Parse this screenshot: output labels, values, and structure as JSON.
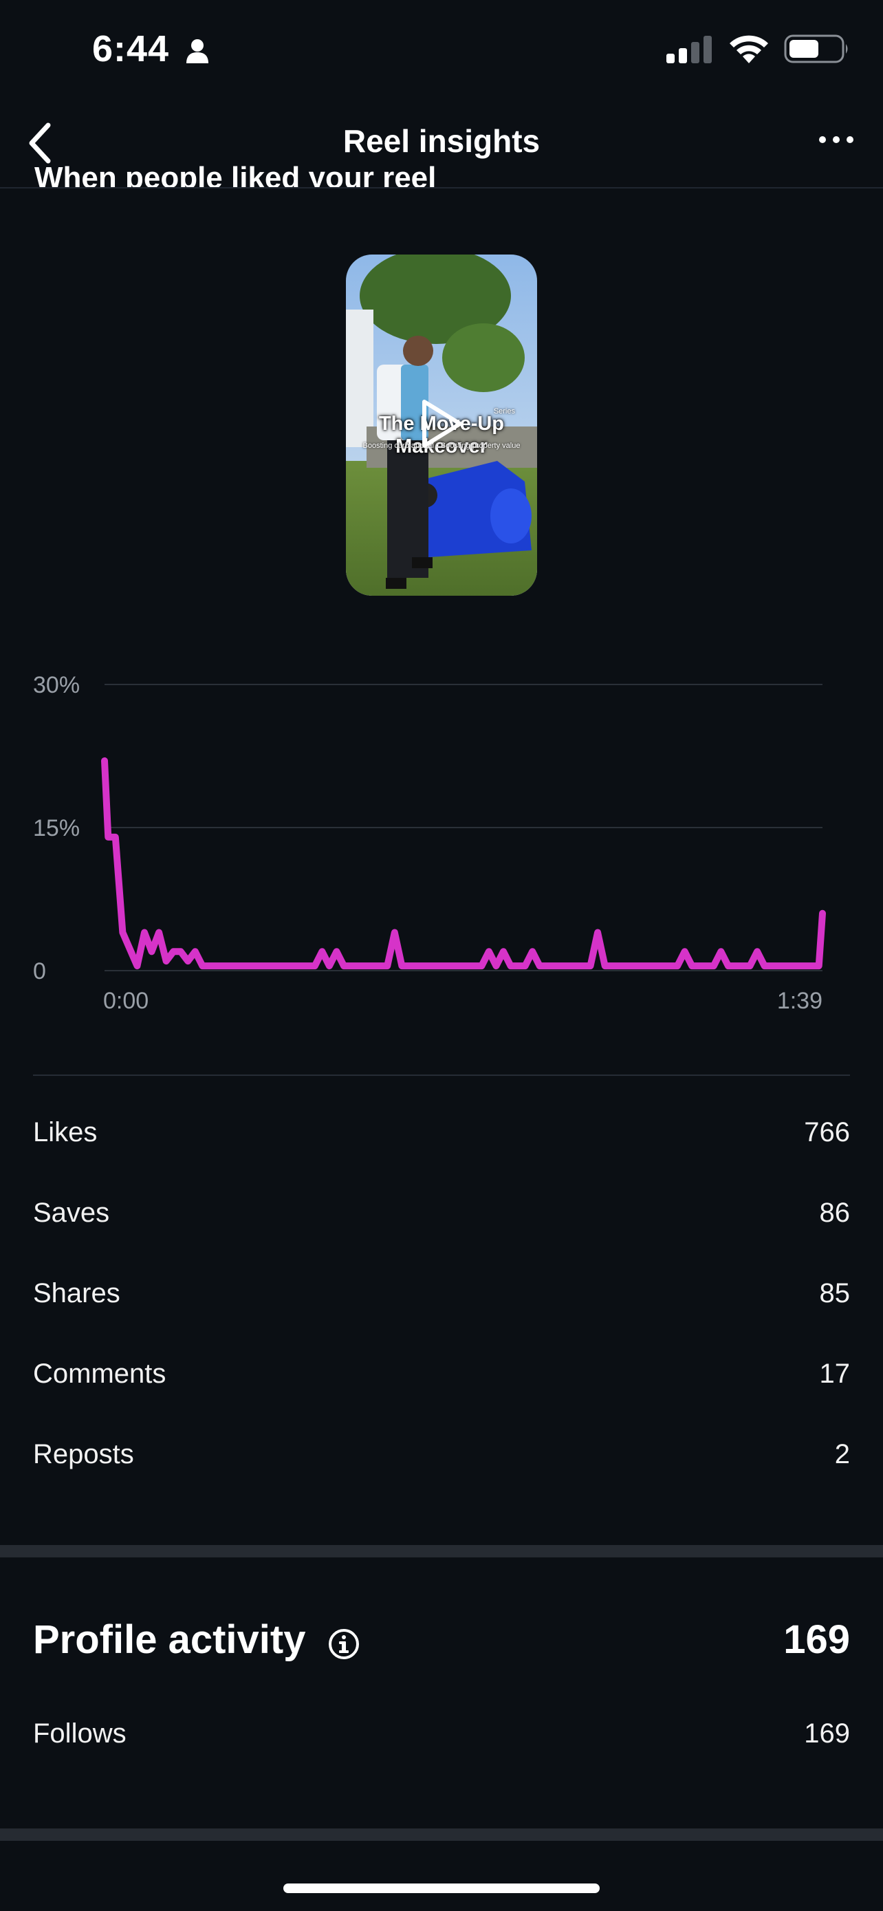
{
  "status_bar": {
    "time": "6:44"
  },
  "nav": {
    "title": "Reel insights"
  },
  "section": {
    "title": "When people liked your reel"
  },
  "thumbnail": {
    "overlay_title": "The Move-Up Makeover",
    "overlay_series": "Series",
    "overlay_subtitle": "Boosting curb appeal • Boosting property value"
  },
  "chart_data": {
    "type": "line",
    "ytick_labels": [
      "30%",
      "15%",
      "0"
    ],
    "xtick_labels": [
      "0:00",
      "1:39"
    ],
    "ylim": [
      0,
      30
    ],
    "xlim": [
      0,
      99
    ],
    "grid": true,
    "color": "#d633c8",
    "series": [
      {
        "x": [
          0,
          0.5,
          1.5,
          2.5,
          4.5,
          5.5,
          6.5,
          7.5,
          8.5,
          9.5,
          10.5,
          11.5,
          12.5,
          13.5,
          14.5,
          29,
          30,
          31,
          32,
          33,
          39,
          40,
          41,
          52,
          53,
          54,
          55,
          56,
          58,
          59,
          60,
          61,
          67,
          68,
          69,
          79,
          80,
          81,
          84,
          85,
          86,
          89,
          90,
          91,
          98.5,
          99
        ],
        "y": [
          22,
          14,
          14,
          4,
          0.5,
          4,
          2,
          4,
          1,
          2,
          2,
          1,
          2,
          0.5,
          0.5,
          0.5,
          2,
          0.5,
          2,
          0.5,
          0.5,
          4,
          0.5,
          0.5,
          2,
          0.5,
          2,
          0.5,
          0.5,
          2,
          0.5,
          0.5,
          0.5,
          4,
          0.5,
          0.5,
          2,
          0.5,
          0.5,
          2,
          0.5,
          0.5,
          2,
          0.5,
          0.5,
          6
        ]
      }
    ]
  },
  "stats": [
    {
      "label": "Likes",
      "value": "766"
    },
    {
      "label": "Saves",
      "value": "86"
    },
    {
      "label": "Shares",
      "value": "85"
    },
    {
      "label": "Comments",
      "value": "17"
    },
    {
      "label": "Reposts",
      "value": "2"
    }
  ],
  "profile_activity": {
    "title": "Profile activity",
    "value": "169",
    "rows": [
      {
        "label": "Follows",
        "value": "169"
      }
    ]
  }
}
